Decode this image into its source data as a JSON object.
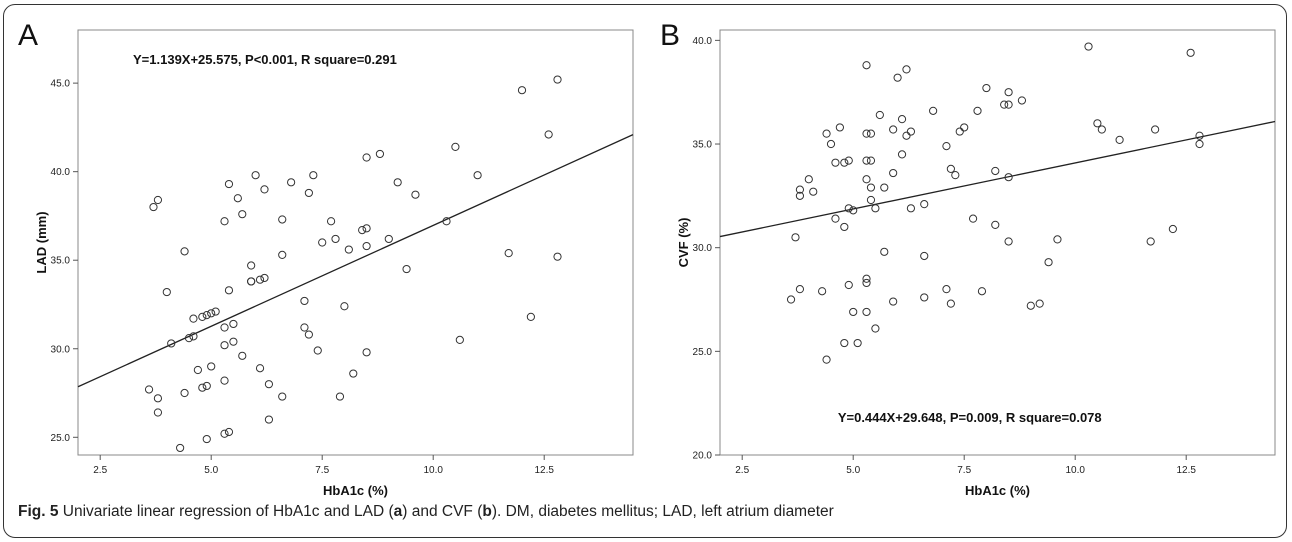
{
  "caption": {
    "prefix": "Fig. 5",
    "text_1": " Univariate linear regression of HbA1c and LAD (",
    "label_a": "a",
    "text_2": ") and CVF (",
    "label_b": "b",
    "text_3": "). DM, diabetes mellitus; LAD, left atrium diameter"
  },
  "chart_data": [
    {
      "type": "scatter",
      "panel_letter": "A",
      "annotation": "Y=1.139X+25.575, P<0.001, R square=0.291",
      "annotation_position": "top-left",
      "xlabel": "HbA1c (%)",
      "ylabel": "LAD (mm)",
      "xlim": [
        2,
        14.5
      ],
      "ylim": [
        24,
        48
      ],
      "xticks": [
        2.5,
        5.0,
        7.5,
        10.0,
        12.5
      ],
      "xtick_labels": [
        "2.5",
        "5.0",
        "7.5",
        "10.0",
        "12.5"
      ],
      "yticks": [
        25.0,
        30.0,
        35.0,
        40.0,
        45.0
      ],
      "ytick_labels": [
        "25.0",
        "30.0",
        "35.0",
        "40.0",
        "45.0"
      ],
      "grid": false,
      "regression": {
        "slope": 1.139,
        "intercept": 25.575
      },
      "colors": {
        "marker": "#333333",
        "line": "#222222",
        "frame": "#888888"
      },
      "points": [
        [
          3.6,
          27.7
        ],
        [
          3.7,
          38.0
        ],
        [
          3.8,
          38.4
        ],
        [
          3.8,
          27.2
        ],
        [
          3.8,
          26.4
        ],
        [
          4.0,
          33.2
        ],
        [
          4.1,
          30.3
        ],
        [
          4.3,
          24.4
        ],
        [
          4.4,
          27.5
        ],
        [
          4.4,
          35.5
        ],
        [
          4.5,
          30.6
        ],
        [
          4.6,
          31.7
        ],
        [
          4.6,
          30.7
        ],
        [
          4.7,
          28.8
        ],
        [
          4.8,
          31.8
        ],
        [
          4.8,
          27.8
        ],
        [
          4.9,
          31.9
        ],
        [
          4.9,
          27.9
        ],
        [
          4.9,
          24.9
        ],
        [
          5.0,
          32.0
        ],
        [
          5.0,
          29.0
        ],
        [
          5.1,
          32.1
        ],
        [
          5.3,
          37.2
        ],
        [
          5.3,
          31.2
        ],
        [
          5.3,
          30.2
        ],
        [
          5.3,
          28.2
        ],
        [
          5.3,
          25.2
        ],
        [
          5.4,
          39.3
        ],
        [
          5.4,
          33.3
        ],
        [
          5.4,
          25.3
        ],
        [
          5.5,
          31.4
        ],
        [
          5.5,
          30.4
        ],
        [
          5.6,
          38.5
        ],
        [
          5.7,
          37.6
        ],
        [
          5.7,
          29.6
        ],
        [
          5.9,
          33.8
        ],
        [
          5.9,
          34.7
        ],
        [
          5.9,
          33.8
        ],
        [
          6.0,
          39.8
        ],
        [
          6.1,
          33.9
        ],
        [
          6.1,
          28.9
        ],
        [
          6.2,
          39.0
        ],
        [
          6.2,
          34.0
        ],
        [
          6.3,
          28.0
        ],
        [
          6.3,
          26.0
        ],
        [
          6.6,
          37.3
        ],
        [
          6.6,
          35.3
        ],
        [
          6.6,
          27.3
        ],
        [
          6.8,
          39.4
        ],
        [
          7.1,
          32.7
        ],
        [
          7.1,
          31.2
        ],
        [
          7.2,
          38.8
        ],
        [
          7.2,
          30.8
        ],
        [
          7.3,
          39.8
        ],
        [
          7.4,
          29.9
        ],
        [
          7.5,
          36.0
        ],
        [
          7.7,
          37.2
        ],
        [
          7.8,
          36.2
        ],
        [
          7.9,
          27.3
        ],
        [
          8.0,
          32.4
        ],
        [
          8.1,
          35.6
        ],
        [
          8.2,
          28.6
        ],
        [
          8.4,
          36.7
        ],
        [
          8.5,
          40.8
        ],
        [
          8.5,
          36.8
        ],
        [
          8.5,
          35.8
        ],
        [
          8.5,
          29.8
        ],
        [
          8.8,
          41.0
        ],
        [
          9.0,
          36.2
        ],
        [
          9.2,
          39.4
        ],
        [
          9.4,
          34.5
        ],
        [
          9.6,
          38.7
        ],
        [
          10.3,
          37.2
        ],
        [
          10.5,
          41.4
        ],
        [
          10.6,
          30.5
        ],
        [
          11.0,
          39.8
        ],
        [
          11.7,
          35.4
        ],
        [
          12.0,
          44.6
        ],
        [
          12.2,
          31.8
        ],
        [
          12.6,
          42.1
        ],
        [
          12.8,
          45.2
        ],
        [
          12.8,
          35.2
        ]
      ]
    },
    {
      "type": "scatter",
      "panel_letter": "B",
      "annotation": "Y=0.444X+29.648, P=0.009, R square=0.078",
      "annotation_position": "bottom-center",
      "xlabel": "HbA1c (%)",
      "ylabel": "CVF (%)",
      "xlim": [
        2,
        14.5
      ],
      "ylim": [
        20,
        40.5
      ],
      "xticks": [
        2.5,
        5.0,
        7.5,
        10.0,
        12.5
      ],
      "xtick_labels": [
        "2.5",
        "5.0",
        "7.5",
        "10.0",
        "12.5"
      ],
      "yticks": [
        20.0,
        25.0,
        30.0,
        35.0,
        40.0
      ],
      "ytick_labels": [
        "20.0",
        "25.0",
        "30.0",
        "35.0",
        "40.0"
      ],
      "grid": false,
      "regression": {
        "slope": 0.444,
        "intercept": 29.648
      },
      "colors": {
        "marker": "#333333",
        "line": "#222222",
        "frame": "#888888"
      },
      "points": [
        [
          3.6,
          27.5
        ],
        [
          3.7,
          30.5
        ],
        [
          3.8,
          32.8
        ],
        [
          3.8,
          32.5
        ],
        [
          3.8,
          28.0
        ],
        [
          4.0,
          33.3
        ],
        [
          4.1,
          32.7
        ],
        [
          4.3,
          27.9
        ],
        [
          4.4,
          35.5
        ],
        [
          4.4,
          24.6
        ],
        [
          4.5,
          35.0
        ],
        [
          4.6,
          34.1
        ],
        [
          4.6,
          31.4
        ],
        [
          4.7,
          35.8
        ],
        [
          4.8,
          34.1
        ],
        [
          4.8,
          31.0
        ],
        [
          4.8,
          25.4
        ],
        [
          4.9,
          34.2
        ],
        [
          4.9,
          31.9
        ],
        [
          4.9,
          28.2
        ],
        [
          5.0,
          31.8
        ],
        [
          5.0,
          26.9
        ],
        [
          5.1,
          25.4
        ],
        [
          5.3,
          38.8
        ],
        [
          5.3,
          35.5
        ],
        [
          5.3,
          34.2
        ],
        [
          5.3,
          33.3
        ],
        [
          5.3,
          28.5
        ],
        [
          5.3,
          28.3
        ],
        [
          5.3,
          26.9
        ],
        [
          5.4,
          35.5
        ],
        [
          5.4,
          34.2
        ],
        [
          5.4,
          32.9
        ],
        [
          5.4,
          32.3
        ],
        [
          5.5,
          31.9
        ],
        [
          5.5,
          26.1
        ],
        [
          5.6,
          36.4
        ],
        [
          5.7,
          32.9
        ],
        [
          5.7,
          29.8
        ],
        [
          5.9,
          35.7
        ],
        [
          5.9,
          33.6
        ],
        [
          5.9,
          27.4
        ],
        [
          6.0,
          38.2
        ],
        [
          6.1,
          36.2
        ],
        [
          6.1,
          34.5
        ],
        [
          6.2,
          38.6
        ],
        [
          6.2,
          35.4
        ],
        [
          6.3,
          35.6
        ],
        [
          6.3,
          31.9
        ],
        [
          6.6,
          32.1
        ],
        [
          6.6,
          29.6
        ],
        [
          6.6,
          27.6
        ],
        [
          6.8,
          36.6
        ],
        [
          7.1,
          34.9
        ],
        [
          7.1,
          28.0
        ],
        [
          7.2,
          33.8
        ],
        [
          7.2,
          27.3
        ],
        [
          7.3,
          33.5
        ],
        [
          7.4,
          35.6
        ],
        [
          7.5,
          35.8
        ],
        [
          7.7,
          31.4
        ],
        [
          7.8,
          36.6
        ],
        [
          7.9,
          27.9
        ],
        [
          8.0,
          37.7
        ],
        [
          8.2,
          33.7
        ],
        [
          8.2,
          31.1
        ],
        [
          8.4,
          36.9
        ],
        [
          8.5,
          37.5
        ],
        [
          8.5,
          36.9
        ],
        [
          8.5,
          33.4
        ],
        [
          8.5,
          30.3
        ],
        [
          8.8,
          37.1
        ],
        [
          9.0,
          27.2
        ],
        [
          9.2,
          27.3
        ],
        [
          9.4,
          29.3
        ],
        [
          9.6,
          30.4
        ],
        [
          10.3,
          39.7
        ],
        [
          10.5,
          36.0
        ],
        [
          10.6,
          35.7
        ],
        [
          11.0,
          35.2
        ],
        [
          11.7,
          30.3
        ],
        [
          11.8,
          35.7
        ],
        [
          12.2,
          30.9
        ],
        [
          12.6,
          39.4
        ],
        [
          12.8,
          35.4
        ],
        [
          12.8,
          35.0
        ]
      ]
    }
  ]
}
